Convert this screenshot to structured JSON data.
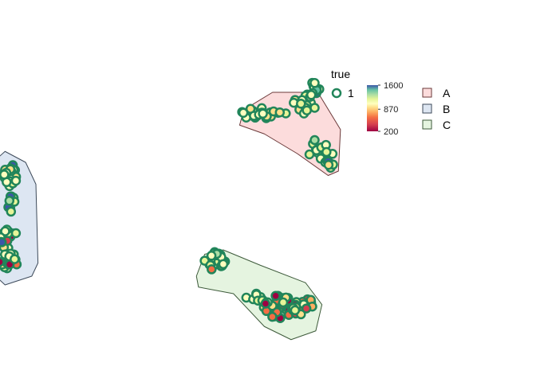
{
  "chart_data": {
    "type": "scatter",
    "title": "",
    "xlabel": "",
    "ylabel": "",
    "grid": false,
    "hulls": [
      {
        "name": "A",
        "fill": "#fcdcdc",
        "stroke": "#6b3a3a",
        "polygon": [
          [
            7.0,
            9.6
          ],
          [
            8.4,
            10.4
          ],
          [
            10.6,
            10.4
          ],
          [
            11.7,
            8.7
          ],
          [
            11.6,
            6.8
          ],
          [
            11.1,
            6.6
          ],
          [
            9.6,
            7.6
          ],
          [
            8.0,
            8.5
          ],
          [
            6.8,
            8.9
          ]
        ]
      },
      {
        "name": "B",
        "fill": "#dde6f2",
        "stroke": "#3d4a5a",
        "polygon": [
          [
            -5.2,
            7.2
          ],
          [
            -4.6,
            7.7
          ],
          [
            -3.6,
            7.2
          ],
          [
            -3.1,
            6.2
          ],
          [
            -3.0,
            2.6
          ],
          [
            -3.3,
            2.0
          ],
          [
            -4.6,
            1.6
          ],
          [
            -5.5,
            2.4
          ],
          [
            -5.6,
            4.3
          ]
        ]
      },
      {
        "name": "C",
        "fill": "#e5f4e0",
        "stroke": "#3d5a3a",
        "polygon": [
          [
            4.7,
            2.0
          ],
          [
            5.1,
            3.0
          ],
          [
            6.0,
            3.2
          ],
          [
            7.8,
            2.5
          ],
          [
            10.0,
            1.7
          ],
          [
            10.8,
            0.7
          ],
          [
            10.5,
            -0.5
          ],
          [
            9.3,
            -0.9
          ],
          [
            8.0,
            -0.3
          ],
          [
            6.5,
            1.2
          ],
          [
            4.8,
            1.5
          ]
        ]
      }
    ],
    "legend_true": {
      "title": "true",
      "label": "1"
    },
    "colorbar": {
      "min": 200,
      "max": 1600,
      "ticks": [
        1600,
        870,
        200
      ]
    },
    "legend_groups": [
      "A",
      "B",
      "C"
    ]
  }
}
